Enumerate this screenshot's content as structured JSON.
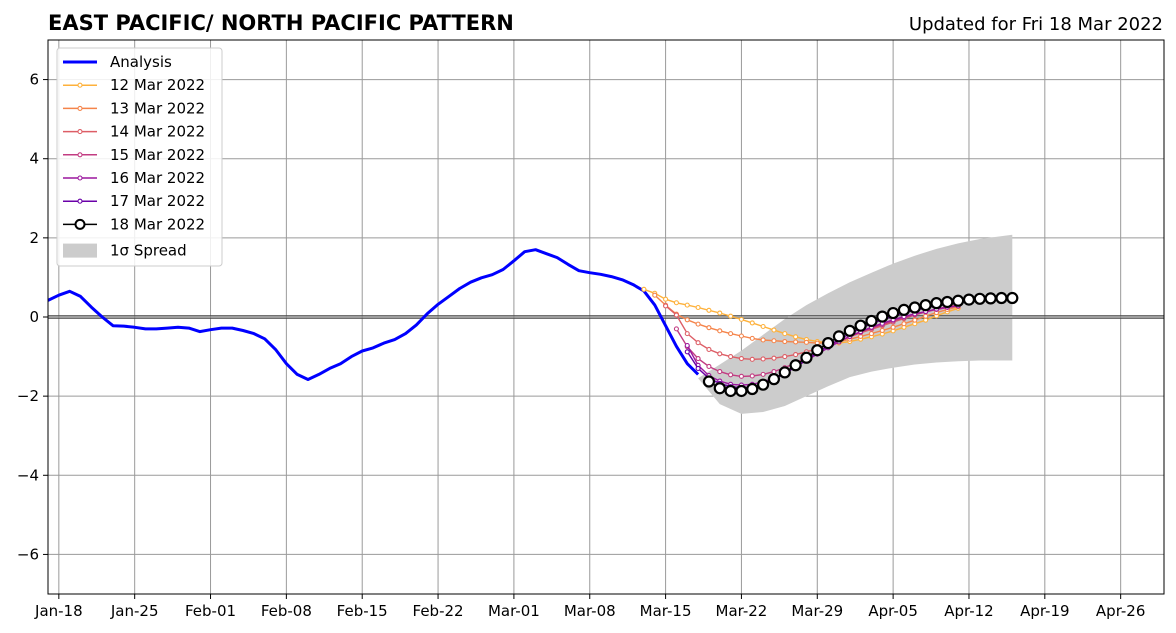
{
  "chart_data": {
    "type": "line",
    "title": "EAST PACIFIC/ NORTH PACIFIC PATTERN",
    "subtitle": "Updated for Fri 18 Mar 2022",
    "xlabel": "",
    "ylabel": "",
    "xlim": [
      "2022-01-17",
      "2022-04-30"
    ],
    "ylim": [
      -7,
      7
    ],
    "grid": true,
    "zero_line": true,
    "legend_position": "top-left",
    "x_ticks": [
      {
        "date": "2022-01-18",
        "label": "Jan-18"
      },
      {
        "date": "2022-01-25",
        "label": "Jan-25"
      },
      {
        "date": "2022-02-01",
        "label": "Feb-01"
      },
      {
        "date": "2022-02-08",
        "label": "Feb-08"
      },
      {
        "date": "2022-02-15",
        "label": "Feb-15"
      },
      {
        "date": "2022-02-22",
        "label": "Feb-22"
      },
      {
        "date": "2022-03-01",
        "label": "Mar-01"
      },
      {
        "date": "2022-03-08",
        "label": "Mar-08"
      },
      {
        "date": "2022-03-15",
        "label": "Mar-15"
      },
      {
        "date": "2022-03-22",
        "label": "Mar-22"
      },
      {
        "date": "2022-03-29",
        "label": "Mar-29"
      },
      {
        "date": "2022-04-05",
        "label": "Apr-05"
      },
      {
        "date": "2022-04-12",
        "label": "Apr-12"
      },
      {
        "date": "2022-04-19",
        "label": "Apr-19"
      },
      {
        "date": "2022-04-26",
        "label": "Apr-26"
      }
    ],
    "y_ticks": [
      {
        "value": -6,
        "label": "−6"
      },
      {
        "value": -4,
        "label": "−4"
      },
      {
        "value": -2,
        "label": "−2"
      },
      {
        "value": 0,
        "label": "0"
      },
      {
        "value": 2,
        "label": "2"
      },
      {
        "value": 4,
        "label": "4"
      },
      {
        "value": 6,
        "label": "6"
      }
    ],
    "analysis": {
      "name": "Analysis",
      "color": "#0000ff",
      "x": [
        "2022-01-17",
        "2022-01-18",
        "2022-01-19",
        "2022-01-20",
        "2022-01-21",
        "2022-01-22",
        "2022-01-23",
        "2022-01-24",
        "2022-01-25",
        "2022-01-26",
        "2022-01-27",
        "2022-01-28",
        "2022-01-29",
        "2022-01-30",
        "2022-01-31",
        "2022-02-01",
        "2022-02-02",
        "2022-02-03",
        "2022-02-04",
        "2022-02-05",
        "2022-02-06",
        "2022-02-07",
        "2022-02-08",
        "2022-02-09",
        "2022-02-10",
        "2022-02-11",
        "2022-02-12",
        "2022-02-13",
        "2022-02-14",
        "2022-02-15",
        "2022-02-16",
        "2022-02-17",
        "2022-02-18",
        "2022-02-19",
        "2022-02-20",
        "2022-02-21",
        "2022-02-22",
        "2022-02-23",
        "2022-02-24",
        "2022-02-25",
        "2022-02-26",
        "2022-02-27",
        "2022-02-28",
        "2022-03-01",
        "2022-03-02",
        "2022-03-03",
        "2022-03-04",
        "2022-03-05",
        "2022-03-06",
        "2022-03-07",
        "2022-03-08",
        "2022-03-09",
        "2022-03-10",
        "2022-03-11",
        "2022-03-12",
        "2022-03-13",
        "2022-03-14",
        "2022-03-15",
        "2022-03-16",
        "2022-03-17",
        "2022-03-18"
      ],
      "y": [
        0.42,
        0.55,
        0.65,
        0.52,
        0.25,
        0.0,
        -0.22,
        -0.23,
        -0.26,
        -0.3,
        -0.3,
        -0.28,
        -0.26,
        -0.28,
        -0.37,
        -0.32,
        -0.28,
        -0.28,
        -0.34,
        -0.42,
        -0.55,
        -0.82,
        -1.18,
        -1.45,
        -1.58,
        -1.45,
        -1.3,
        -1.18,
        -1.0,
        -0.86,
        -0.78,
        -0.66,
        -0.57,
        -0.42,
        -0.2,
        0.08,
        0.32,
        0.52,
        0.72,
        0.88,
        0.99,
        1.07,
        1.2,
        1.42,
        1.65,
        1.7,
        1.6,
        1.5,
        1.33,
        1.17,
        1.12,
        1.08,
        1.02,
        0.94,
        0.82,
        0.66,
        0.3,
        -0.22,
        -0.74,
        -1.18,
        -1.45
      ]
    },
    "forecasts": [
      {
        "name": "12 Mar 2022",
        "color": "#feb13b",
        "x": [
          "2022-03-13",
          "2022-03-14",
          "2022-03-15",
          "2022-03-16",
          "2022-03-17",
          "2022-03-18",
          "2022-03-19",
          "2022-03-20",
          "2022-03-21",
          "2022-03-22",
          "2022-03-23",
          "2022-03-24",
          "2022-03-25",
          "2022-03-26",
          "2022-03-27",
          "2022-03-28",
          "2022-03-29",
          "2022-03-30",
          "2022-03-31",
          "2022-04-01",
          "2022-04-02",
          "2022-04-03",
          "2022-04-04",
          "2022-04-05",
          "2022-04-06",
          "2022-04-07",
          "2022-04-08",
          "2022-04-09",
          "2022-04-10",
          "2022-04-11"
        ],
        "y": [
          0.7,
          0.6,
          0.45,
          0.36,
          0.3,
          0.24,
          0.17,
          0.1,
          0.02,
          -0.06,
          -0.15,
          -0.24,
          -0.33,
          -0.42,
          -0.5,
          -0.57,
          -0.62,
          -0.65,
          -0.66,
          -0.62,
          -0.56,
          -0.5,
          -0.43,
          -0.35,
          -0.26,
          -0.17,
          -0.08,
          0.03,
          0.13,
          0.22
        ]
      },
      {
        "name": "13 Mar 2022",
        "color": "#f5844a",
        "x": [
          "2022-03-14",
          "2022-03-15",
          "2022-03-16",
          "2022-03-17",
          "2022-03-18",
          "2022-03-19",
          "2022-03-20",
          "2022-03-21",
          "2022-03-22",
          "2022-03-23",
          "2022-03-24",
          "2022-03-25",
          "2022-03-26",
          "2022-03-27",
          "2022-03-28",
          "2022-03-29",
          "2022-03-30",
          "2022-03-31",
          "2022-04-01",
          "2022-04-02",
          "2022-04-03",
          "2022-04-04",
          "2022-04-05",
          "2022-04-06",
          "2022-04-07",
          "2022-04-08",
          "2022-04-09",
          "2022-04-10",
          "2022-04-11"
        ],
        "y": [
          0.55,
          0.3,
          0.07,
          -0.07,
          -0.18,
          -0.27,
          -0.35,
          -0.42,
          -0.48,
          -0.54,
          -0.58,
          -0.6,
          -0.62,
          -0.63,
          -0.64,
          -0.66,
          -0.66,
          -0.62,
          -0.56,
          -0.49,
          -0.42,
          -0.34,
          -0.26,
          -0.17,
          -0.08,
          0.02,
          0.11,
          0.19,
          0.26
        ]
      },
      {
        "name": "14 Mar 2022",
        "color": "#dd5e66",
        "x": [
          "2022-03-15",
          "2022-03-16",
          "2022-03-17",
          "2022-03-18",
          "2022-03-19",
          "2022-03-20",
          "2022-03-21",
          "2022-03-22",
          "2022-03-23",
          "2022-03-24",
          "2022-03-25",
          "2022-03-26",
          "2022-03-27",
          "2022-03-28",
          "2022-03-29",
          "2022-03-30",
          "2022-03-31",
          "2022-04-01",
          "2022-04-02",
          "2022-04-03",
          "2022-04-04",
          "2022-04-05",
          "2022-04-06",
          "2022-04-07",
          "2022-04-08",
          "2022-04-09",
          "2022-04-10",
          "2022-04-11"
        ],
        "y": [
          0.28,
          0.05,
          -0.42,
          -0.65,
          -0.82,
          -0.93,
          -1.0,
          -1.05,
          -1.07,
          -1.06,
          -1.04,
          -1.0,
          -0.95,
          -0.88,
          -0.8,
          -0.7,
          -0.6,
          -0.5,
          -0.4,
          -0.31,
          -0.22,
          -0.13,
          -0.04,
          0.05,
          0.13,
          0.2,
          0.26,
          0.3
        ]
      },
      {
        "name": "15 Mar 2022",
        "color": "#c23c82",
        "x": [
          "2022-03-16",
          "2022-03-17",
          "2022-03-18",
          "2022-03-19",
          "2022-03-20",
          "2022-03-21",
          "2022-03-22",
          "2022-03-23",
          "2022-03-24",
          "2022-03-25",
          "2022-03-26",
          "2022-03-27",
          "2022-03-28",
          "2022-03-29",
          "2022-03-30",
          "2022-03-31",
          "2022-04-01",
          "2022-04-02",
          "2022-04-03",
          "2022-04-04",
          "2022-04-05",
          "2022-04-06",
          "2022-04-07",
          "2022-04-08",
          "2022-04-09",
          "2022-04-10",
          "2022-04-11"
        ],
        "y": [
          -0.3,
          -0.75,
          -1.05,
          -1.25,
          -1.38,
          -1.46,
          -1.5,
          -1.49,
          -1.45,
          -1.38,
          -1.28,
          -1.16,
          -1.02,
          -0.88,
          -0.74,
          -0.61,
          -0.49,
          -0.38,
          -0.28,
          -0.19,
          -0.1,
          -0.02,
          0.06,
          0.13,
          0.19,
          0.24,
          0.28
        ]
      },
      {
        "name": "16 Mar 2022",
        "color": "#9b179e",
        "x": [
          "2022-03-17",
          "2022-03-18",
          "2022-03-19",
          "2022-03-20",
          "2022-03-21",
          "2022-03-22",
          "2022-03-23",
          "2022-03-24",
          "2022-03-25",
          "2022-03-26",
          "2022-03-27",
          "2022-03-28",
          "2022-03-29",
          "2022-03-30",
          "2022-03-31",
          "2022-04-01",
          "2022-04-02",
          "2022-04-03",
          "2022-04-04",
          "2022-04-05",
          "2022-04-06",
          "2022-04-07",
          "2022-04-08",
          "2022-04-09",
          "2022-04-10",
          "2022-04-11"
        ],
        "y": [
          -0.72,
          -1.22,
          -1.48,
          -1.62,
          -1.7,
          -1.72,
          -1.7,
          -1.64,
          -1.54,
          -1.41,
          -1.26,
          -1.1,
          -0.94,
          -0.78,
          -0.63,
          -0.49,
          -0.37,
          -0.26,
          -0.16,
          -0.07,
          0.01,
          0.08,
          0.14,
          0.2,
          0.25,
          0.28
        ]
      },
      {
        "name": "17 Mar 2022",
        "color": "#6a00a8",
        "x": [
          "2022-03-17",
          "2022-03-18",
          "2022-03-19",
          "2022-03-20",
          "2022-03-21",
          "2022-03-22",
          "2022-03-23",
          "2022-03-24",
          "2022-03-25",
          "2022-03-26",
          "2022-03-27",
          "2022-03-28",
          "2022-03-29",
          "2022-03-30",
          "2022-03-31",
          "2022-04-01",
          "2022-04-02",
          "2022-04-03",
          "2022-04-04",
          "2022-04-05",
          "2022-04-06",
          "2022-04-07",
          "2022-04-08",
          "2022-04-09",
          "2022-04-10",
          "2022-04-11"
        ],
        "y": [
          -0.88,
          -1.3,
          -1.55,
          -1.68,
          -1.76,
          -1.79,
          -1.77,
          -1.7,
          -1.58,
          -1.43,
          -1.26,
          -1.08,
          -0.9,
          -0.73,
          -0.57,
          -0.42,
          -0.29,
          -0.17,
          -0.07,
          0.02,
          0.1,
          0.17,
          0.23,
          0.28,
          0.32,
          0.35
        ]
      },
      {
        "name": "18 Mar 2022",
        "color": "#000000",
        "marker": "open-circle",
        "x": [
          "2022-03-19",
          "2022-03-20",
          "2022-03-21",
          "2022-03-22",
          "2022-03-23",
          "2022-03-24",
          "2022-03-25",
          "2022-03-26",
          "2022-03-27",
          "2022-03-28",
          "2022-03-29",
          "2022-03-30",
          "2022-03-31",
          "2022-04-01",
          "2022-04-02",
          "2022-04-03",
          "2022-04-04",
          "2022-04-05",
          "2022-04-06",
          "2022-04-07",
          "2022-04-08",
          "2022-04-09",
          "2022-04-10",
          "2022-04-11",
          "2022-04-12",
          "2022-04-13",
          "2022-04-14",
          "2022-04-15",
          "2022-04-16"
        ],
        "y": [
          -1.63,
          -1.8,
          -1.87,
          -1.87,
          -1.82,
          -1.71,
          -1.57,
          -1.4,
          -1.22,
          -1.03,
          -0.84,
          -0.66,
          -0.49,
          -0.35,
          -0.22,
          -0.1,
          0.01,
          0.1,
          0.18,
          0.24,
          0.3,
          0.35,
          0.38,
          0.41,
          0.44,
          0.46,
          0.47,
          0.48,
          0.48
        ]
      }
    ],
    "spread": {
      "name": "1σ Spread",
      "color": "#cccccc",
      "x": [
        "2022-03-18",
        "2022-03-20",
        "2022-03-22",
        "2022-03-24",
        "2022-03-26",
        "2022-03-28",
        "2022-03-30",
        "2022-04-01",
        "2022-04-03",
        "2022-04-05",
        "2022-04-07",
        "2022-04-09",
        "2022-04-11",
        "2022-04-13",
        "2022-04-16"
      ],
      "upper": [
        -1.55,
        -1.2,
        -0.85,
        -0.45,
        -0.05,
        0.3,
        0.6,
        0.88,
        1.12,
        1.35,
        1.55,
        1.72,
        1.86,
        1.97,
        2.08
      ],
      "lower": [
        -1.55,
        -2.2,
        -2.45,
        -2.4,
        -2.25,
        -2.0,
        -1.75,
        -1.52,
        -1.38,
        -1.28,
        -1.2,
        -1.15,
        -1.12,
        -1.1,
        -1.1
      ]
    }
  }
}
